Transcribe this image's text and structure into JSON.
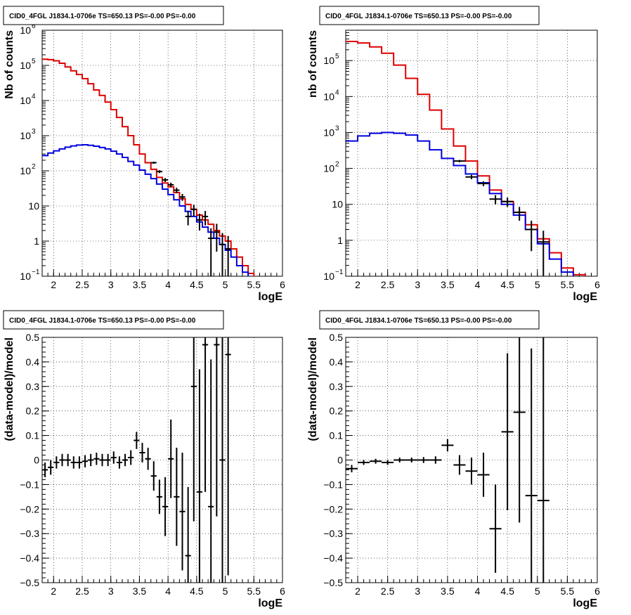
{
  "chart_data": [
    {
      "type": "line",
      "title": "CID0_4FGL J1834.1-0706e TS=650.13 PS=-0.00 PS=-0.00",
      "xlabel": "logE",
      "ylabel": "Nb of counts",
      "xlim": [
        1.8,
        6.0
      ],
      "ylim": [
        0.1,
        1000000
      ],
      "log_y": true,
      "grid": true,
      "x_ticks": [
        "2",
        "2.5",
        "3",
        "3.5",
        "4",
        "4.5",
        "5",
        "5.5",
        "6"
      ],
      "y_ticks": [
        {
          "value": 0.1,
          "label": "10",
          "exp": "−1"
        },
        {
          "value": 1,
          "label": "1",
          "exp": ""
        },
        {
          "value": 10,
          "label": "10",
          "exp": ""
        },
        {
          "value": 100,
          "label": "10",
          "exp": "2"
        },
        {
          "value": 1000,
          "label": "10",
          "exp": "3"
        },
        {
          "value": 10000,
          "label": "10",
          "exp": "4"
        },
        {
          "value": 100000,
          "label": "10",
          "exp": "5"
        },
        {
          "value": 1000000,
          "label": "10",
          "exp": "6"
        }
      ],
      "bin_width": 0.1,
      "series": [
        {
          "color": "#dd0000",
          "style": "step",
          "x": [
            1.8,
            1.9,
            2.0,
            2.1,
            2.2,
            2.3,
            2.4,
            2.5,
            2.6,
            2.7,
            2.8,
            2.9,
            3.0,
            3.1,
            3.2,
            3.3,
            3.4,
            3.5,
            3.6,
            3.7,
            3.8,
            3.9,
            4.0,
            4.1,
            4.2,
            4.3,
            4.4,
            4.5,
            4.6,
            4.7,
            4.8,
            4.9,
            5.0,
            5.1,
            5.2,
            5.3,
            5.4,
            5.5,
            5.6,
            5.7,
            5.8,
            5.9
          ],
          "y": [
            150000,
            145000,
            135000,
            115000,
            90000,
            70000,
            55000,
            42000,
            30000,
            20000,
            14000,
            9000,
            5500,
            3300,
            1800,
            1000,
            550,
            300,
            170,
            110,
            65,
            45,
            35,
            24,
            16,
            11,
            8,
            5.5,
            4,
            3,
            2,
            1.4,
            1,
            0.6,
            0.35,
            0.2,
            0.12,
            0,
            0,
            0,
            0,
            0
          ]
        },
        {
          "color": "#0000dd",
          "style": "step",
          "x": [
            1.8,
            1.9,
            2.0,
            2.1,
            2.2,
            2.3,
            2.4,
            2.5,
            2.6,
            2.7,
            2.8,
            2.9,
            3.0,
            3.1,
            3.2,
            3.3,
            3.4,
            3.5,
            3.6,
            3.7,
            3.8,
            3.9,
            4.0,
            4.1,
            4.2,
            4.3,
            4.4,
            4.5,
            4.6,
            4.7,
            4.8,
            4.9,
            5.0,
            5.1,
            5.2,
            5.3,
            5.4,
            5.5,
            5.6,
            5.7,
            5.8,
            5.9
          ],
          "y": [
            270,
            320,
            370,
            420,
            470,
            510,
            540,
            550,
            530,
            500,
            460,
            420,
            360,
            300,
            240,
            185,
            145,
            105,
            80,
            60,
            42,
            30,
            21,
            15,
            10,
            7,
            5,
            3.5,
            2.5,
            1.8,
            1.2,
            0.8,
            0.55,
            0.35,
            0.2,
            0.13,
            0,
            0,
            0,
            0,
            0,
            0
          ]
        },
        {
          "color": "#000000",
          "style": "points",
          "x": [
            3.75,
            3.85,
            3.95,
            4.05,
            4.15,
            4.25,
            4.35,
            4.45,
            4.55,
            4.65,
            4.75,
            4.85,
            4.95,
            5.05
          ],
          "y": [
            170,
            95,
            55,
            40,
            28,
            18,
            5,
            8,
            4,
            5,
            1.2,
            1.8,
            0.8,
            0.6
          ],
          "err": [
            12,
            9,
            7,
            6,
            5,
            4,
            2.2,
            2.8,
            2,
            2.2,
            1.1,
            1.3,
            0.9,
            0.8
          ]
        }
      ]
    },
    {
      "type": "line",
      "title": "CID0_4FGL J1834.1-0706e TS=650.13 PS=-0.00 PS=-0.00",
      "xlabel": "logE",
      "ylabel": "nb of counts",
      "xlim": [
        1.8,
        6.0
      ],
      "ylim": [
        0.1,
        700000
      ],
      "log_y": true,
      "grid": true,
      "x_ticks": [
        "2",
        "2.5",
        "3",
        "3.5",
        "4",
        "4.5",
        "5",
        "5.5",
        "6"
      ],
      "y_ticks": [
        {
          "value": 0.1,
          "label": "10",
          "exp": "−1"
        },
        {
          "value": 1,
          "label": "1",
          "exp": ""
        },
        {
          "value": 10,
          "label": "10",
          "exp": ""
        },
        {
          "value": 100,
          "label": "10",
          "exp": "2"
        },
        {
          "value": 1000,
          "label": "10",
          "exp": "3"
        },
        {
          "value": 10000,
          "label": "10",
          "exp": "4"
        },
        {
          "value": 100000,
          "label": "10",
          "exp": "5"
        }
      ],
      "bin_width": 0.2,
      "series": [
        {
          "color": "#dd0000",
          "style": "step",
          "x": [
            1.8,
            2.0,
            2.2,
            2.4,
            2.6,
            2.8,
            3.0,
            3.2,
            3.4,
            3.6,
            3.8,
            4.0,
            4.2,
            4.4,
            4.6,
            4.8,
            5.0,
            5.2,
            5.4,
            5.6,
            5.8
          ],
          "y": [
            340000,
            310000,
            240000,
            160000,
            75000,
            32000,
            11500,
            4200,
            1250,
            420,
            160,
            62,
            25,
            12,
            6,
            2.7,
            1.1,
            0.45,
            0.17,
            0.11,
            0
          ]
        },
        {
          "color": "#0000dd",
          "style": "step",
          "x": [
            1.8,
            2.0,
            2.2,
            2.4,
            2.6,
            2.8,
            3.0,
            3.2,
            3.4,
            3.6,
            3.8,
            4.0,
            4.2,
            4.4,
            4.6,
            4.8,
            5.0,
            5.2,
            5.4,
            5.6,
            5.8
          ],
          "y": [
            580,
            800,
            950,
            1000,
            950,
            850,
            580,
            330,
            190,
            120,
            70,
            40,
            20,
            10,
            5,
            2,
            0.8,
            0.3,
            0.13,
            0,
            0
          ]
        },
        {
          "color": "#000000",
          "style": "points",
          "x": [
            3.7,
            3.9,
            4.1,
            4.3,
            4.5,
            4.7,
            4.9,
            5.1
          ],
          "y": [
            160,
            58,
            38,
            14,
            12,
            6,
            2,
            0.9
          ],
          "err": [
            12,
            8,
            6,
            4,
            3.5,
            2.5,
            1.5,
            0.95
          ]
        }
      ]
    },
    {
      "type": "scatter",
      "title": "CID0_4FGL J1834.1-0706e TS=650.13 PS=-0.00 PS=-0.00",
      "xlabel": "logE",
      "ylabel": "(data-model)/model",
      "xlim": [
        1.8,
        6.0
      ],
      "ylim": [
        -0.5,
        0.5
      ],
      "grid": true,
      "x_ticks": [
        "2",
        "2.5",
        "3",
        "3.5",
        "4",
        "4.5",
        "5",
        "5.5",
        "6"
      ],
      "y_ticks": [
        "−0.5",
        "−0.4",
        "−0.3",
        "−0.2",
        "−0.1",
        "0",
        "0.1",
        "0.2",
        "0.3",
        "0.4",
        "0.5"
      ],
      "bin_width": 0.1,
      "series": [
        {
          "color": "#000000",
          "style": "points",
          "x": [
            1.85,
            1.95,
            2.05,
            2.15,
            2.25,
            2.35,
            2.45,
            2.55,
            2.65,
            2.75,
            2.85,
            2.95,
            3.05,
            3.15,
            3.25,
            3.35,
            3.45,
            3.55,
            3.65,
            3.75,
            3.85,
            3.95,
            4.05,
            4.15,
            4.25,
            4.35,
            4.45,
            4.55,
            4.65,
            4.75,
            4.85,
            4.95,
            5.05
          ],
          "y": [
            -0.04,
            -0.03,
            -0.01,
            0.0,
            0.0,
            -0.01,
            -0.01,
            -0.005,
            0.0,
            0.005,
            0.0,
            0.0,
            0.01,
            -0.01,
            0.0,
            0.01,
            0.08,
            0.03,
            0.005,
            -0.065,
            -0.15,
            -0.19,
            0.005,
            -0.15,
            -0.21,
            -0.39,
            0.3,
            -0.13,
            0.47,
            -0.19,
            0.47,
            0.0,
            0.43
          ],
          "err": [
            0.03,
            0.03,
            0.025,
            0.025,
            0.025,
            0.025,
            0.025,
            0.025,
            0.025,
            0.025,
            0.025,
            0.025,
            0.025,
            0.025,
            0.025,
            0.03,
            0.035,
            0.04,
            0.045,
            0.06,
            0.07,
            0.12,
            0.16,
            0.2,
            0.24,
            0.28,
            0.55,
            0.5,
            0.6,
            0.6,
            0.7,
            0.7,
            0.9
          ]
        }
      ]
    },
    {
      "type": "scatter",
      "title": "CID0_4FGL J1834.1-0706e TS=650.13 PS=-0.00 PS=-0.00",
      "xlabel": "logE",
      "ylabel": "(data-model)/model",
      "xlim": [
        1.8,
        6.0
      ],
      "ylim": [
        -0.5,
        0.5
      ],
      "grid": true,
      "x_ticks": [
        "2",
        "2.5",
        "3",
        "3.5",
        "4",
        "4.5",
        "5",
        "5.5",
        "6"
      ],
      "y_ticks": [
        "−0.5",
        "−0.4",
        "−0.3",
        "−0.2",
        "−0.1",
        "0",
        "0.1",
        "0.2",
        "0.3",
        "0.4",
        "0.5"
      ],
      "bin_width": 0.2,
      "series": [
        {
          "color": "#000000",
          "style": "points",
          "x": [
            1.9,
            2.1,
            2.3,
            2.5,
            2.7,
            2.9,
            3.1,
            3.3,
            3.5,
            3.7,
            3.9,
            4.1,
            4.3,
            4.5,
            4.7,
            4.9,
            5.1
          ],
          "y": [
            -0.035,
            -0.01,
            -0.005,
            -0.01,
            0.0,
            0.0,
            0.0,
            0.0,
            0.06,
            -0.02,
            -0.045,
            -0.06,
            -0.28,
            0.115,
            0.195,
            -0.145,
            -0.165
          ],
          "err": [
            0.015,
            0.01,
            0.01,
            0.01,
            0.01,
            0.01,
            0.012,
            0.015,
            0.025,
            0.04,
            0.055,
            0.09,
            0.18,
            0.32,
            0.45,
            0.6,
            0.7
          ]
        }
      ]
    }
  ]
}
